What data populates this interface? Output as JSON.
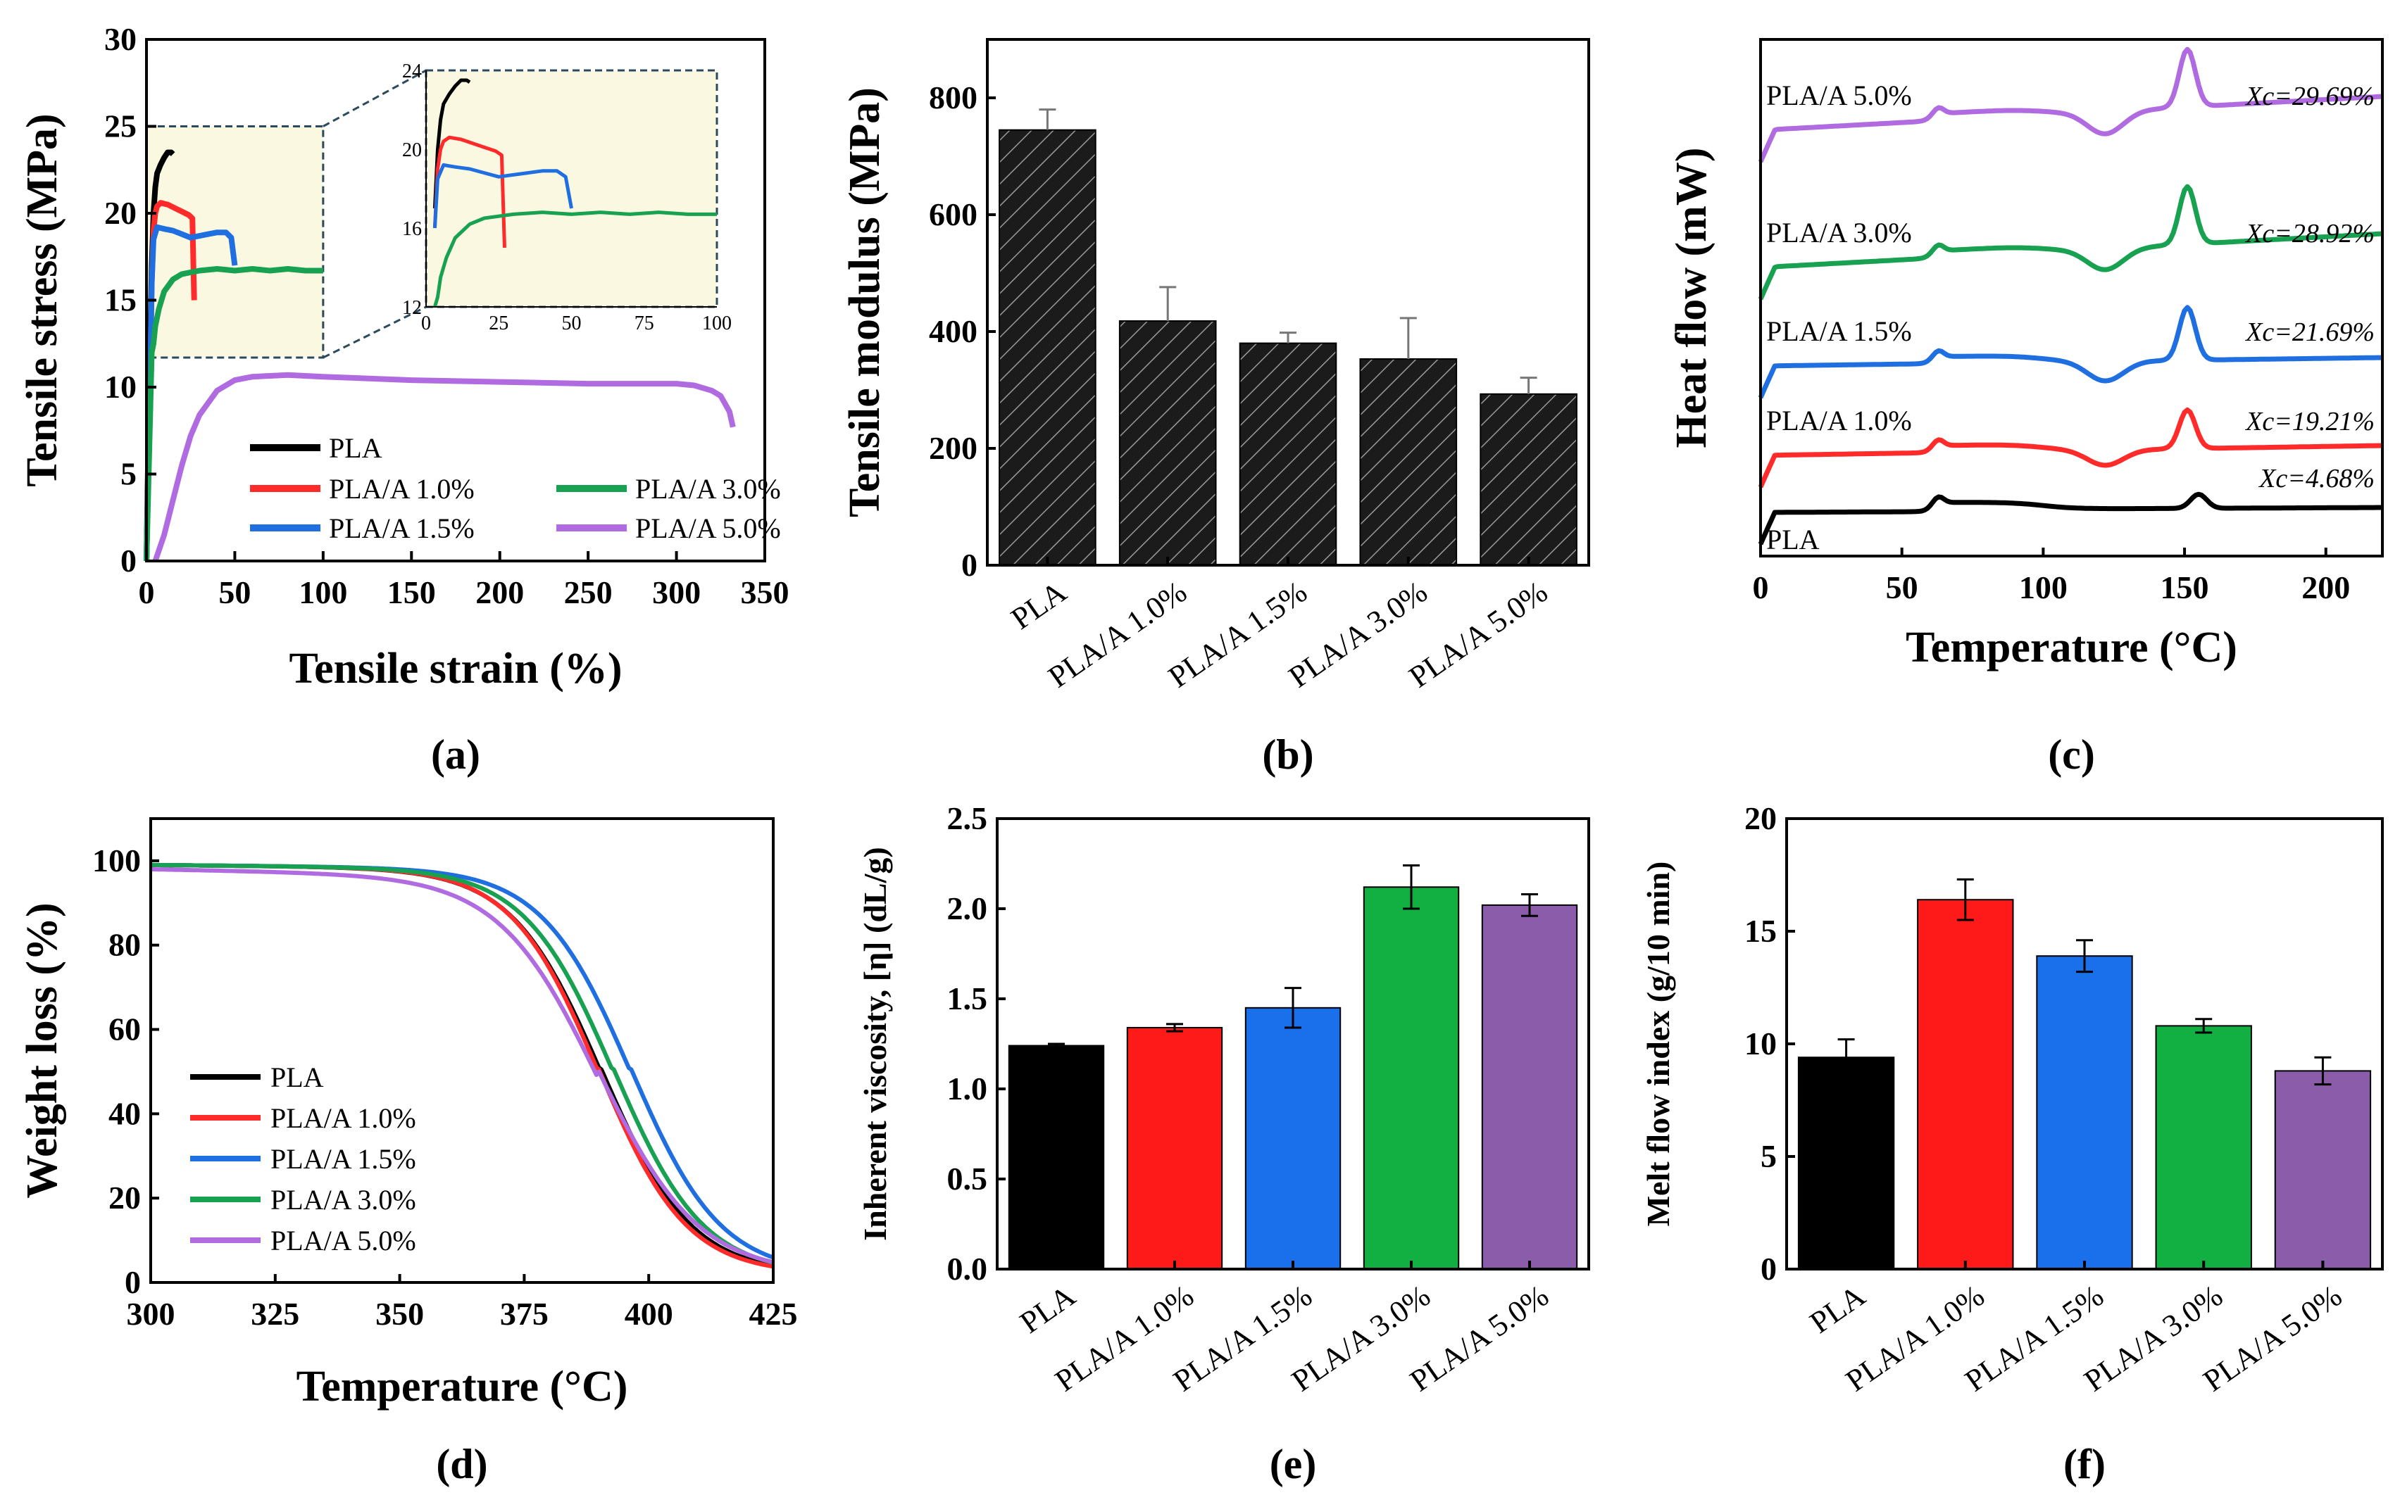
{
  "colors": {
    "PLA": "#000000",
    "PLA/A 1.0%": "#ff2a2a",
    "PLA/A 1.5%": "#1f6fe0",
    "PLA/A 3.0%": "#18a150",
    "PLA/A 5.0%": "#b06be0",
    "bar_purple": "#8a5caa",
    "bar_green": "#12b043",
    "bar_blue": "#1a6fea",
    "inset_bg": "#fbf8e2"
  },
  "chart_data": [
    {
      "id": "a",
      "type": "line",
      "panel_label": "(a)",
      "xlabel": "Tensile strain (%)",
      "ylabel": "Tensile stress (MPa)",
      "xlim": [
        0,
        350
      ],
      "ylim": [
        0,
        30
      ],
      "xticks": [
        0,
        50,
        100,
        150,
        200,
        250,
        300,
        350
      ],
      "yticks": [
        0,
        5,
        10,
        15,
        20,
        25,
        30
      ],
      "series": [
        {
          "name": "PLA",
          "x": [
            0,
            1.5,
            3,
            4,
            5,
            6,
            8,
            10,
            12,
            14,
            15
          ],
          "y": [
            0,
            10,
            17,
            20,
            21.5,
            22.3,
            22.8,
            23.2,
            23.5,
            23.5,
            23.4
          ]
        },
        {
          "name": "PLA/A 1.0%",
          "x": [
            0,
            2,
            3,
            4,
            5,
            6,
            8,
            12,
            16,
            20,
            24,
            26,
            27
          ],
          "y": [
            0,
            10,
            16,
            19,
            20,
            20.4,
            20.6,
            20.5,
            20.3,
            20.1,
            19.9,
            19.7,
            15
          ]
        },
        {
          "name": "PLA/A 1.5%",
          "x": [
            0,
            2,
            3,
            4,
            6,
            10,
            15,
            20,
            25,
            30,
            35,
            40,
            45,
            48,
            50
          ],
          "y": [
            0,
            10,
            16,
            18.5,
            19.2,
            19.1,
            19.0,
            18.8,
            18.6,
            18.7,
            18.8,
            18.9,
            18.9,
            18.6,
            17
          ]
        },
        {
          "name": "PLA/A 3.0%",
          "x": [
            0,
            2,
            3,
            4,
            5,
            7,
            10,
            15,
            20,
            30,
            40,
            50,
            60,
            70,
            80,
            90,
            100
          ],
          "y": [
            0,
            8,
            12,
            12.5,
            13.5,
            14.5,
            15.5,
            16.2,
            16.5,
            16.7,
            16.8,
            16.7,
            16.8,
            16.7,
            16.8,
            16.7,
            16.7
          ]
        },
        {
          "name": "PLA/A 5.0%",
          "x": [
            5,
            10,
            15,
            20,
            25,
            30,
            40,
            50,
            60,
            80,
            100,
            150,
            200,
            250,
            300,
            310,
            320,
            325,
            330,
            332
          ],
          "y": [
            0,
            1.5,
            3.5,
            5.5,
            7.2,
            8.4,
            9.8,
            10.4,
            10.6,
            10.7,
            10.6,
            10.4,
            10.3,
            10.2,
            10.2,
            10.1,
            9.8,
            9.5,
            8.6,
            7.7
          ]
        }
      ],
      "legend": [
        "PLA",
        "PLA/A 1.0%",
        "PLA/A 3.0%",
        "PLA/A 1.5%",
        "PLA/A 5.0%"
      ],
      "inset": {
        "xlim": [
          0,
          100
        ],
        "ylim": [
          12,
          24
        ],
        "xticks": [
          0,
          25,
          50,
          75,
          100
        ],
        "yticks": [
          12,
          16,
          20,
          24
        ]
      }
    },
    {
      "id": "b",
      "type": "bar",
      "panel_label": "(b)",
      "ylabel": "Tensile modulus (MPa)",
      "categories": [
        "PLA",
        "PLA/A 1.0%",
        "PLA/A 1.5%",
        "PLA/A 3.0%",
        "PLA/A 5.0%"
      ],
      "values": [
        745,
        418,
        380,
        353,
        293
      ],
      "errors": [
        35,
        58,
        18,
        70,
        28
      ],
      "ylim": [
        0,
        900
      ],
      "yticks": [
        0,
        200,
        400,
        600,
        800
      ]
    },
    {
      "id": "c",
      "type": "line",
      "panel_label": "(c)",
      "xlabel": "Temperature (°C)",
      "ylabel": "Heat flow (mW)",
      "xlim": [
        0,
        220
      ],
      "xticks": [
        0,
        50,
        100,
        150,
        200
      ],
      "series": [
        {
          "name": "PLA",
          "label": "PLA",
          "xc": "Xc=4.68%"
        },
        {
          "name": "PLA/A 1.0%",
          "label": "PLA/A 1.0%",
          "xc": "Xc=19.21%"
        },
        {
          "name": "PLA/A 1.5%",
          "label": "PLA/A 1.5%",
          "xc": "Xc=21.69%"
        },
        {
          "name": "PLA/A 3.0%",
          "label": "PLA/A 3.0%",
          "xc": "Xc=28.92%"
        },
        {
          "name": "PLA/A 5.0%",
          "label": "PLA/A 5.0%",
          "xc": "Xc=29.69%"
        }
      ]
    },
    {
      "id": "d",
      "type": "line",
      "panel_label": "(d)",
      "xlabel": "Temperature (°C)",
      "ylabel": "Weight loss (%)",
      "xlim": [
        300,
        425
      ],
      "ylim": [
        0,
        110
      ],
      "xticks": [
        300,
        325,
        350,
        375,
        400,
        425
      ],
      "yticks": [
        0,
        20,
        40,
        60,
        80,
        100
      ],
      "series": [
        {
          "name": "PLA",
          "t50": 390.5,
          "width": 9.0,
          "start": 99
        },
        {
          "name": "PLA/A 1.0%",
          "t50": 390.0,
          "width": 8.8,
          "start": 99
        },
        {
          "name": "PLA/A 1.5%",
          "t50": 396.5,
          "width": 9.0,
          "start": 99
        },
        {
          "name": "PLA/A 3.0%",
          "t50": 393.0,
          "width": 9.0,
          "start": 99
        },
        {
          "name": "PLA/A 5.0%",
          "t50": 390.0,
          "width": 10.0,
          "start": 98
        }
      ],
      "legend": [
        "PLA",
        "PLA/A 1.0%",
        "PLA/A 1.5%",
        "PLA/A 3.0%",
        "PLA/A 5.0%"
      ]
    },
    {
      "id": "e",
      "type": "bar",
      "panel_label": "(e)",
      "ylabel": "Inherent viscosity, [η] (dL/g)",
      "categories": [
        "PLA",
        "PLA/A 1.0%",
        "PLA/A 1.5%",
        "PLA/A 3.0%",
        "PLA/A 5.0%"
      ],
      "values": [
        1.24,
        1.34,
        1.45,
        2.12,
        2.02
      ],
      "errors": [
        0.01,
        0.02,
        0.11,
        0.12,
        0.06
      ],
      "ylim": [
        0,
        2.5
      ],
      "yticks": [
        0.0,
        0.5,
        1.0,
        1.5,
        2.0,
        2.5
      ],
      "ytick_labels": [
        "0.0",
        "0.5",
        "1.0",
        "1.5",
        "2.0",
        "2.5"
      ]
    },
    {
      "id": "f",
      "type": "bar",
      "panel_label": "(f)",
      "ylabel": "Melt flow index (g/10 min)",
      "categories": [
        "PLA",
        "PLA/A 1.0%",
        "PLA/A 1.5%",
        "PLA/A 3.0%",
        "PLA/A 5.0%"
      ],
      "values": [
        9.4,
        16.4,
        13.9,
        10.8,
        8.8
      ],
      "errors": [
        0.8,
        0.9,
        0.7,
        0.3,
        0.6
      ],
      "ylim": [
        0,
        20
      ],
      "yticks": [
        0,
        5,
        10,
        15,
        20
      ]
    }
  ]
}
